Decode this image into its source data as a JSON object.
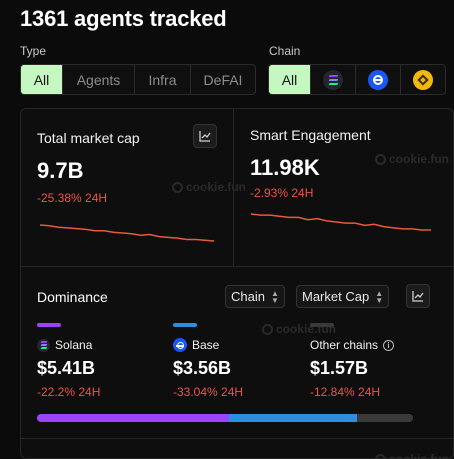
{
  "header": {
    "title": "1361 agents tracked"
  },
  "filters": {
    "type": {
      "label": "Type",
      "options": [
        "All",
        "Agents",
        "Infra",
        "DeFAI"
      ],
      "active": "All"
    },
    "chain": {
      "label": "Chain",
      "all_label": "All",
      "icons": [
        "solana-icon",
        "base-icon",
        "bnb-icon"
      ],
      "active": "All"
    }
  },
  "watermark": "cookie.fun",
  "market_cap": {
    "title": "Total market cap",
    "value": "9.7B",
    "change": "-25.38% 24H",
    "trend": [
      1.0,
      0.99,
      0.97,
      0.96,
      0.95,
      0.94,
      0.92,
      0.92,
      0.9,
      0.89,
      0.88,
      0.86,
      0.87,
      0.84,
      0.83,
      0.82,
      0.8,
      0.8,
      0.79,
      0.78
    ]
  },
  "engagement": {
    "title": "Smart Engagement",
    "value": "11.98K",
    "change": "-2.93% 24H",
    "trend": [
      1.0,
      0.99,
      0.99,
      0.98,
      0.97,
      0.97,
      0.95,
      0.96,
      0.94,
      0.93,
      0.92,
      0.92,
      0.9,
      0.91,
      0.89,
      0.88,
      0.87,
      0.87,
      0.86,
      0.86
    ]
  },
  "dominance": {
    "title": "Dominance",
    "group_select": "Chain",
    "metric_select": "Market Cap",
    "chains": [
      {
        "name": "Solana",
        "value": "$5.41B",
        "change": "-22.2% 24H",
        "color": "#9945ff",
        "share": 0.51
      },
      {
        "name": "Base",
        "value": "$3.56B",
        "change": "-33.04% 24H",
        "color": "#2d8fe0",
        "share": 0.34
      },
      {
        "name": "Other chains",
        "value": "$1.57B",
        "change": "-12.84% 24H",
        "color": "#3a3a3a",
        "share": 0.15
      }
    ]
  },
  "colors": {
    "accent": "#c5f7c1",
    "negative": "#f0524b",
    "sparkline": "#e65a3e"
  }
}
